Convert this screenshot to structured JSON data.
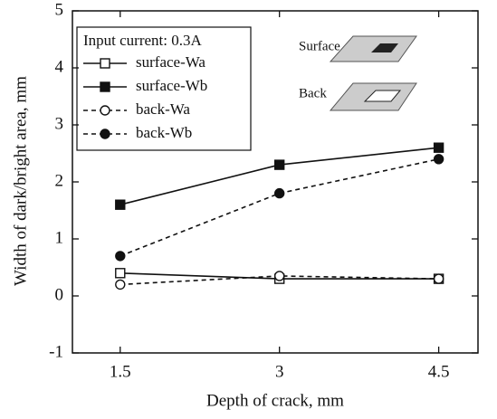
{
  "chart_data": {
    "type": "line",
    "xlabel": "Depth of crack, mm",
    "ylabel": "Width of dark/bright area, mm",
    "legend_title": "Input current: 0.3A",
    "annotations": [
      "Surface",
      "Back"
    ],
    "x": [
      1.5,
      3,
      4.5
    ],
    "xlim": [
      1.05,
      4.87
    ],
    "xticks": [
      1.5,
      3,
      4.5
    ],
    "ylim": [
      -1,
      5
    ],
    "yticks": [
      -1,
      0,
      1,
      2,
      3,
      4,
      5
    ],
    "grid": false,
    "legend": "upper left",
    "series": [
      {
        "name": "surface-Wa",
        "color": "#111111",
        "marker": "square-open",
        "dashed": false,
        "values": [
          0.4,
          0.3,
          0.3
        ]
      },
      {
        "name": "surface-Wb",
        "color": "#111111",
        "marker": "square-filled",
        "dashed": false,
        "values": [
          1.6,
          2.3,
          2.6
        ]
      },
      {
        "name": "back-Wa",
        "color": "#111111",
        "marker": "circle-open",
        "dashed": true,
        "values": [
          0.2,
          0.35,
          0.3
        ]
      },
      {
        "name": "back-Wb",
        "color": "#111111",
        "marker": "circle-filled",
        "dashed": true,
        "values": [
          0.7,
          1.8,
          2.4
        ]
      }
    ]
  }
}
